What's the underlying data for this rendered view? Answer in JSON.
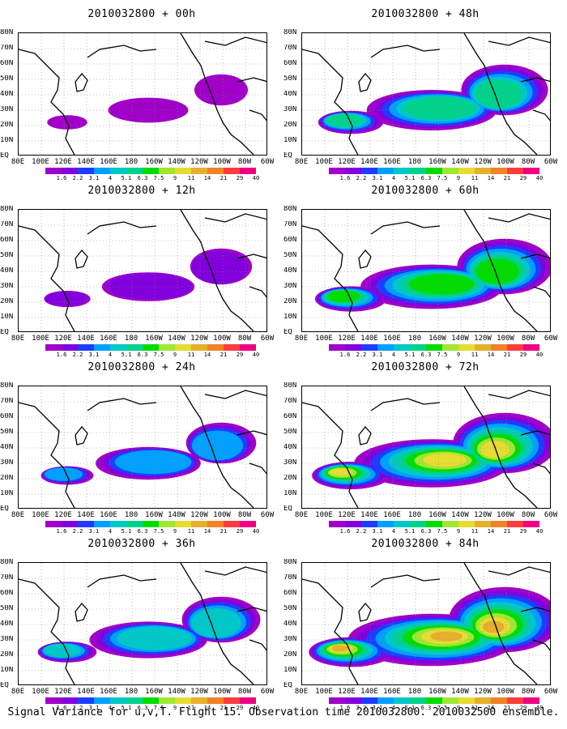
{
  "caption": "Signal Variance for u,v,T. Flight 15. Observation time 2010032800. 2010032500 ensemble.",
  "lat_labels": [
    "80N",
    "70N",
    "60N",
    "50N",
    "40N",
    "30N",
    "20N",
    "10N",
    "EQ"
  ],
  "lon_labels": [
    "80E",
    "100E",
    "120E",
    "140E",
    "160E",
    "180",
    "160W",
    "140W",
    "120W",
    "100W",
    "80W",
    "60W"
  ],
  "colorbar": {
    "labels": [
      "1.6",
      "2.2",
      "3.1",
      "4",
      "5.1",
      "6.3",
      "7.5",
      "9",
      "11",
      "14",
      "21",
      "29",
      "40"
    ],
    "colors": [
      "#a000c8",
      "#8200dc",
      "#1e3cff",
      "#00a0ff",
      "#00c8c8",
      "#00d28c",
      "#00dc00",
      "#a0e632",
      "#e6dc32",
      "#e6af2d",
      "#f08228",
      "#fa3c3c",
      "#f00082"
    ]
  },
  "panels": [
    {
      "title": "2010032800 + 00h",
      "lead_hours": 0
    },
    {
      "title": "2010032800 + 48h",
      "lead_hours": 48
    },
    {
      "title": "2010032800 + 12h",
      "lead_hours": 12
    },
    {
      "title": "2010032800 + 60h",
      "lead_hours": 60
    },
    {
      "title": "2010032800 + 24h",
      "lead_hours": 24
    },
    {
      "title": "2010032800 + 72h",
      "lead_hours": 72
    },
    {
      "title": "2010032800 + 36h",
      "lead_hours": 36
    },
    {
      "title": "2010032800 + 84h",
      "lead_hours": 84
    }
  ]
}
